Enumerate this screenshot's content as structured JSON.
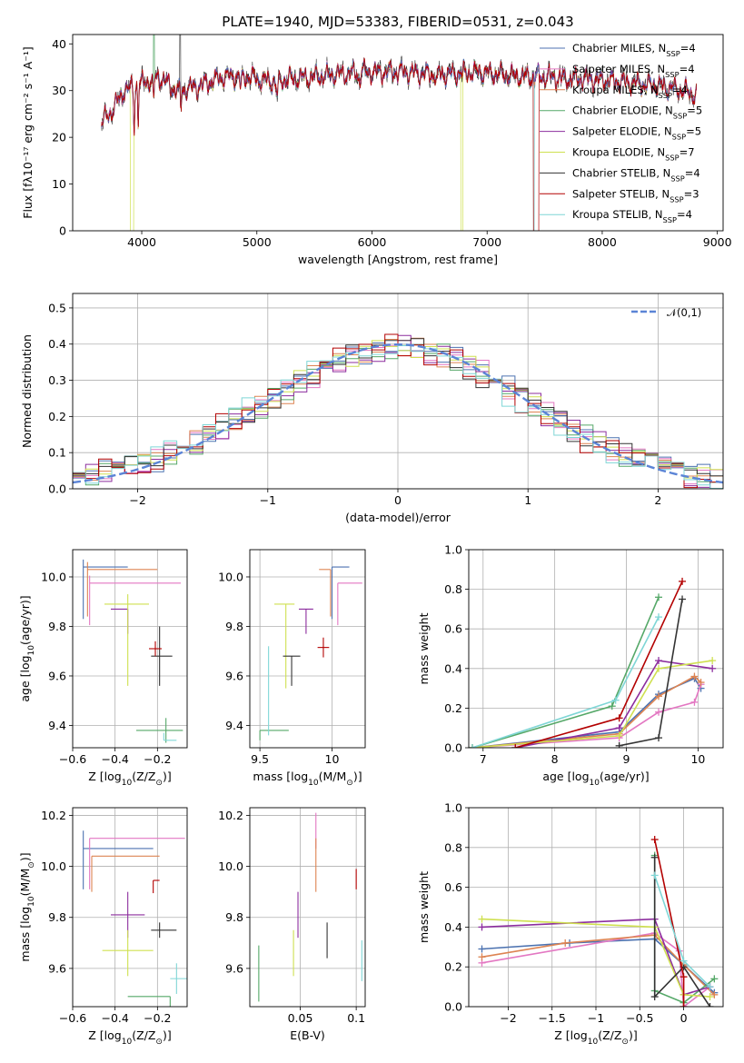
{
  "chart_data": [
    {
      "type": "line",
      "title": "PLATE=1940, MJD=53383, FIBERID=0531, z=0.043",
      "xlabel": "wavelength [Angstrom, rest frame]",
      "ylabel": "Flux [fλ10⁻¹⁷ erg cm⁻² s⁻¹ A⁻¹]",
      "xlim": [
        3400,
        9050
      ],
      "ylim": [
        0,
        42
      ],
      "xticks": [
        4000,
        5000,
        6000,
        7000,
        8000,
        9000
      ],
      "yticks": [
        0,
        10,
        20,
        30,
        40
      ],
      "legend_position": "right",
      "grid": false,
      "continuum": {
        "wavelength": [
          3650,
          3750,
          3850,
          3950,
          4050,
          4150,
          4300,
          4500,
          4700,
          4900,
          5100,
          5300,
          5500,
          5700,
          5900,
          6100,
          6300,
          6500,
          6700,
          6900,
          7100,
          7300,
          7500,
          7700,
          7900,
          8100,
          8300,
          8500,
          8700,
          8820
        ],
        "flux": [
          23,
          26,
          30,
          31,
          32,
          33,
          30,
          31,
          33,
          33,
          32,
          32.5,
          33,
          33.5,
          34,
          34,
          34,
          33.5,
          33.5,
          34,
          33.5,
          33,
          33,
          32.5,
          32.5,
          32,
          31.5,
          31,
          30,
          29
        ]
      },
      "series": [
        {
          "name": "Chabrier MILES, N$_{SSP}$=4",
          "color": "#4c72b0"
        },
        {
          "name": "Salpeter MILES, N$_{SSP}$=4",
          "color": "#e377c2"
        },
        {
          "name": "Kroupa MILES, N$_{SSP}$=4",
          "color": "#dd8452"
        },
        {
          "name": "Chabrier ELODIE, N$_{SSP}$=5",
          "color": "#55a868"
        },
        {
          "name": "Salpeter ELODIE, N$_{SSP}$=5",
          "color": "#8c2d9e"
        },
        {
          "name": "Kroupa ELODIE, N$_{SSP}$=7",
          "color": "#cfe050"
        },
        {
          "name": "Chabrier STELIB, N$_{SSP}$=4",
          "color": "#333333"
        },
        {
          "name": "Salpeter STELIB, N$_{SSP}$=3",
          "color": "#b30000"
        },
        {
          "name": "Kroupa STELIB, N$_{SSP}$=4",
          "color": "#7fd6d6"
        }
      ]
    },
    {
      "type": "line",
      "subtype": "histogram",
      "xlabel": "(data-model)/error",
      "ylabel": "Normed distribution",
      "xlim": [
        -2.5,
        2.5
      ],
      "ylim": [
        0,
        0.54
      ],
      "xticks": [
        -2,
        -1,
        0,
        1,
        2
      ],
      "yticks": [
        0.0,
        0.1,
        0.2,
        0.3,
        0.4,
        0.5
      ],
      "grid": true,
      "legend": "$\\mathcal{N}(0,1)$",
      "legend_position": "top-right",
      "gaussian_color": "#5b84d6",
      "bin_width": 0.1,
      "mean_profile": {
        "x": [
          -2.5,
          -2.0,
          -1.5,
          -1.0,
          -0.5,
          0.0,
          0.5,
          1.0,
          1.5,
          2.0,
          2.5
        ],
        "y": [
          0.04,
          0.06,
          0.14,
          0.24,
          0.35,
          0.4,
          0.35,
          0.24,
          0.13,
          0.06,
          0.02
        ]
      }
    },
    {
      "type": "scatter",
      "subtype": "errorbar",
      "xlabel": "Z [log$_{10}$(Z/Z$_\\odot$)]",
      "ylabel": "age  [log$_{10}$(age/yr)]",
      "xlim": [
        -0.6,
        -0.06
      ],
      "ylim": [
        9.31,
        10.11
      ],
      "xticks": [
        -0.6,
        -0.4,
        -0.2
      ],
      "yticks": [
        9.4,
        9.6,
        9.8,
        10.0
      ],
      "grid": true,
      "points": [
        {
          "x": -0.55,
          "y": 10.04,
          "xerr": [
            0.0,
            0.21
          ],
          "yerr": [
            0.21,
            0.03
          ],
          "series": 0
        },
        {
          "x": -0.52,
          "y": 9.975,
          "xerr": [
            0.0,
            0.43
          ],
          "yerr": [
            0.17,
            0.03
          ],
          "series": 1
        },
        {
          "x": -0.53,
          "y": 10.03,
          "xerr": [
            0.0,
            0.33
          ],
          "yerr": [
            0.19,
            0.03
          ],
          "series": 2
        },
        {
          "x": -0.16,
          "y": 9.38,
          "xerr": [
            0.14,
            0.08
          ],
          "yerr": [
            0.05,
            0.05
          ],
          "series": 3
        },
        {
          "x": -0.34,
          "y": 9.87,
          "xerr": [
            0.08,
            0.0
          ],
          "yerr": [
            0.1,
            0.0
          ],
          "series": 4
        },
        {
          "x": -0.34,
          "y": 9.89,
          "xerr": [
            0.11,
            0.1
          ],
          "yerr": [
            0.33,
            0.04
          ],
          "series": 5
        },
        {
          "x": -0.19,
          "y": 9.68,
          "xerr": [
            0.04,
            0.06
          ],
          "yerr": [
            0.12,
            0.12
          ],
          "series": 6
        },
        {
          "x": -0.21,
          "y": 9.71,
          "xerr": [
            0.03,
            0.03
          ],
          "yerr": [
            0.03,
            0.03
          ],
          "series": 7
        },
        {
          "x": -0.17,
          "y": 9.34,
          "xerr": [
            0.0,
            0.06
          ],
          "yerr": [
            0.0,
            0.03
          ],
          "series": 8
        }
      ]
    },
    {
      "type": "scatter",
      "subtype": "errorbar",
      "xlabel": "mass [log$_{10}$(M/M$_\\odot$)]",
      "ylabel": "",
      "xlim": [
        9.43,
        10.23
      ],
      "ylim": [
        9.31,
        10.11
      ],
      "xticks": [
        9.5,
        10.0
      ],
      "yticks": [
        9.4,
        9.6,
        9.8,
        10.0
      ],
      "grid": true,
      "points": [
        {
          "x": 10.0,
          "y": 10.04,
          "xerr": [
            0.0,
            0.12
          ],
          "yerr": [
            0.21,
            0.0
          ],
          "series": 0
        },
        {
          "x": 10.04,
          "y": 9.975,
          "xerr": [
            0.0,
            0.17
          ],
          "yerr": [
            0.17,
            0.0
          ],
          "series": 1
        },
        {
          "x": 9.99,
          "y": 10.03,
          "xerr": [
            0.08,
            0.0
          ],
          "yerr": [
            0.19,
            0.0
          ],
          "series": 2
        },
        {
          "x": 9.5,
          "y": 9.38,
          "xerr": [
            0.0,
            0.2
          ],
          "yerr": [
            0.04,
            0.0
          ],
          "series": 3
        },
        {
          "x": 9.82,
          "y": 9.87,
          "xerr": [
            0.05,
            0.05
          ],
          "yerr": [
            0.1,
            0.0
          ],
          "series": 4
        },
        {
          "x": 9.68,
          "y": 9.89,
          "xerr": [
            0.08,
            0.06
          ],
          "yerr": [
            0.34,
            0.0
          ],
          "series": 5
        },
        {
          "x": 9.72,
          "y": 9.68,
          "xerr": [
            0.06,
            0.06
          ],
          "yerr": [
            0.12,
            0.0
          ],
          "series": 6
        },
        {
          "x": 9.94,
          "y": 9.715,
          "xerr": [
            0.04,
            0.04
          ],
          "yerr": [
            0.04,
            0.04
          ],
          "series": 7
        },
        {
          "x": 9.56,
          "y": 9.36,
          "xerr": [
            0.0,
            0.0
          ],
          "yerr": [
            0.0,
            0.36
          ],
          "series": 8
        }
      ]
    },
    {
      "type": "line",
      "xlabel": "age  [log$_{10}$(age/yr)]",
      "ylabel": "mass weight",
      "xlim": [
        6.8,
        10.35
      ],
      "ylim": [
        0,
        1
      ],
      "xticks": [
        7,
        8,
        9,
        10
      ],
      "yticks": [
        0.0,
        0.2,
        0.4,
        0.6,
        0.8,
        1.0
      ],
      "grid": true,
      "series": [
        {
          "series": 0,
          "x": [
            6.85,
            8.9,
            9.45,
            9.95,
            10.04
          ],
          "y": [
            0.0,
            0.08,
            0.27,
            0.35,
            0.3
          ]
        },
        {
          "series": 1,
          "x": [
            6.85,
            8.9,
            9.45,
            9.95,
            10.04
          ],
          "y": [
            0.0,
            0.05,
            0.18,
            0.23,
            0.32
          ]
        },
        {
          "series": 2,
          "x": [
            6.85,
            8.9,
            9.45,
            9.95,
            10.04
          ],
          "y": [
            0.0,
            0.07,
            0.26,
            0.36,
            0.33
          ]
        },
        {
          "series": 3,
          "x": [
            6.85,
            8.8,
            9.45
          ],
          "y": [
            0.0,
            0.21,
            0.76
          ]
        },
        {
          "series": 4,
          "x": [
            7.45,
            8.9,
            9.45,
            10.2
          ],
          "y": [
            0.0,
            0.1,
            0.44,
            0.4
          ]
        },
        {
          "series": 5,
          "x": [
            6.85,
            8.9,
            9.45,
            10.2
          ],
          "y": [
            0.0,
            0.06,
            0.4,
            0.44
          ]
        },
        {
          "series": 6,
          "x": [
            8.9,
            9.45,
            9.78
          ],
          "y": [
            0.01,
            0.05,
            0.75
          ]
        },
        {
          "series": 7,
          "x": [
            7.45,
            8.9,
            9.78
          ],
          "y": [
            0.0,
            0.15,
            0.84
          ]
        },
        {
          "series": 8,
          "x": [
            6.85,
            8.85,
            9.45
          ],
          "y": [
            0.0,
            0.24,
            0.66
          ]
        }
      ]
    },
    {
      "type": "scatter",
      "subtype": "errorbar",
      "xlabel": "Z [log$_{10}$(Z/Z$_\\odot$)]",
      "ylabel": "mass [log$_{10}$(M/M$_\\odot$)]",
      "xlim": [
        -0.6,
        -0.06
      ],
      "ylim": [
        9.45,
        10.23
      ],
      "xticks": [
        -0.6,
        -0.4,
        -0.2
      ],
      "yticks": [
        9.6,
        9.8,
        10.0,
        10.2
      ],
      "grid": true,
      "points": [
        {
          "x": -0.55,
          "y": 10.07,
          "xerr": [
            0.0,
            0.33
          ],
          "yerr": [
            0.16,
            0.07
          ],
          "series": 0
        },
        {
          "x": -0.52,
          "y": 10.11,
          "xerr": [
            0.0,
            0.45
          ],
          "yerr": [
            0.2,
            0.0
          ],
          "series": 1
        },
        {
          "x": -0.51,
          "y": 10.04,
          "xerr": [
            0.0,
            0.32
          ],
          "yerr": [
            0.14,
            0.0
          ],
          "series": 2
        },
        {
          "x": -0.14,
          "y": 9.49,
          "xerr": [
            0.2,
            0.0
          ],
          "yerr": [
            0.04,
            0.0
          ],
          "series": 3
        },
        {
          "x": -0.34,
          "y": 9.81,
          "xerr": [
            0.08,
            0.08
          ],
          "yerr": [
            0.09,
            0.09
          ],
          "series": 4
        },
        {
          "x": -0.34,
          "y": 9.67,
          "xerr": [
            0.12,
            0.12
          ],
          "yerr": [
            0.1,
            0.08
          ],
          "series": 5
        },
        {
          "x": -0.19,
          "y": 9.75,
          "xerr": [
            0.04,
            0.08
          ],
          "yerr": [
            0.03,
            0.03
          ],
          "series": 6
        },
        {
          "x": -0.22,
          "y": 9.945,
          "xerr": [
            0.0,
            0.03
          ],
          "yerr": [
            0.05,
            0.0
          ],
          "series": 7
        },
        {
          "x": -0.11,
          "y": 9.56,
          "xerr": [
            0.03,
            0.05
          ],
          "yerr": [
            0.06,
            0.06
          ],
          "series": 8
        }
      ]
    },
    {
      "type": "scatter",
      "subtype": "errorbar",
      "xlabel": "E(B-V)",
      "ylabel": "",
      "xlim": [
        0.005,
        0.108
      ],
      "ylim": [
        9.45,
        10.23
      ],
      "xticks": [
        0.05,
        0.1
      ],
      "yticks": [
        9.6,
        9.8,
        10.0,
        10.2
      ],
      "grid": true,
      "points": [
        {
          "x": 0.064,
          "y": 10.14,
          "xerr": [
            0,
            0
          ],
          "yerr": [
            0.07,
            0.07
          ],
          "series": 1
        },
        {
          "x": 0.064,
          "y": 10.01,
          "xerr": [
            0,
            0
          ],
          "yerr": [
            0.11,
            0.1
          ],
          "series": 2
        },
        {
          "x": 0.013,
          "y": 9.58,
          "xerr": [
            0,
            0
          ],
          "yerr": [
            0.11,
            0.11
          ],
          "series": 3
        },
        {
          "x": 0.048,
          "y": 9.81,
          "xerr": [
            0,
            0
          ],
          "yerr": [
            0.09,
            0.09
          ],
          "series": 4
        },
        {
          "x": 0.044,
          "y": 9.66,
          "xerr": [
            0,
            0
          ],
          "yerr": [
            0.09,
            0.09
          ],
          "series": 5
        },
        {
          "x": 0.074,
          "y": 9.71,
          "xerr": [
            0,
            0
          ],
          "yerr": [
            0.07,
            0.07
          ],
          "series": 6
        },
        {
          "x": 0.1,
          "y": 9.95,
          "xerr": [
            0,
            0
          ],
          "yerr": [
            0.04,
            0.04
          ],
          "series": 7
        },
        {
          "x": 0.105,
          "y": 9.63,
          "xerr": [
            0,
            0
          ],
          "yerr": [
            0.08,
            0.08
          ],
          "series": 8
        }
      ]
    },
    {
      "type": "line",
      "xlabel": "Z [log$_{10}$(Z/Z$_\\odot$)]",
      "ylabel": "mass weight",
      "xlim": [
        -2.45,
        0.45
      ],
      "ylim": [
        0,
        1
      ],
      "xticks": [
        -2.0,
        -1.5,
        -1.0,
        -0.5,
        0.0
      ],
      "yticks": [
        0.0,
        0.2,
        0.4,
        0.6,
        0.8,
        1.0
      ],
      "grid": true,
      "series": [
        {
          "series": 0,
          "x": [
            -2.3,
            -1.3,
            -0.33,
            0.0,
            0.35
          ],
          "y": [
            0.29,
            0.32,
            0.34,
            0.21,
            0.07
          ]
        },
        {
          "series": 1,
          "x": [
            -2.3,
            -0.33,
            -0.05,
            0.0,
            0.3
          ],
          "y": [
            0.22,
            0.37,
            0.28,
            0.0,
            0.1
          ]
        },
        {
          "series": 2,
          "x": [
            -2.3,
            -1.35,
            -0.33,
            0.0,
            0.35
          ],
          "y": [
            0.25,
            0.32,
            0.36,
            0.21,
            0.06
          ]
        },
        {
          "series": 3,
          "x": [
            -0.33,
            -0.33,
            0.0,
            0.35
          ],
          "y": [
            0.76,
            0.08,
            0.02,
            0.14
          ]
        },
        {
          "series": 4,
          "x": [
            -2.3,
            -0.33,
            0.0,
            0.3
          ],
          "y": [
            0.4,
            0.44,
            0.06,
            0.1
          ]
        },
        {
          "series": 5,
          "x": [
            -2.3,
            -0.33,
            0.0,
            0.3
          ],
          "y": [
            0.44,
            0.4,
            0.06,
            0.05
          ]
        },
        {
          "series": 6,
          "x": [
            -0.33,
            -0.33,
            0.0,
            0.3
          ],
          "y": [
            0.75,
            0.05,
            0.2,
            0.0
          ]
        },
        {
          "series": 7,
          "x": [
            -0.33,
            0.0,
            0.0
          ],
          "y": [
            0.84,
            0.15,
            0.0
          ]
        },
        {
          "series": 8,
          "x": [
            -0.33,
            0.0,
            0.3
          ],
          "y": [
            0.66,
            0.23,
            0.1
          ]
        }
      ]
    }
  ]
}
